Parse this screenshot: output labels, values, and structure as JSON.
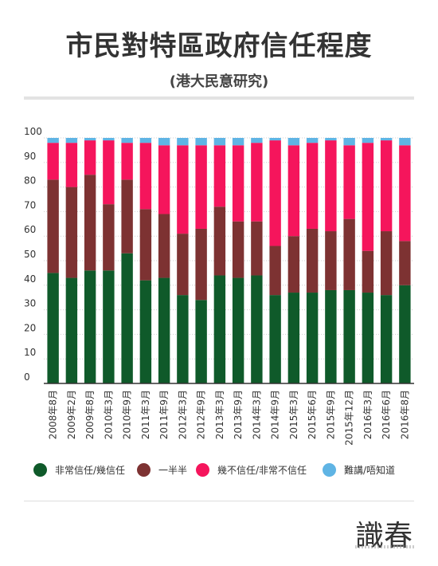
{
  "title": "市民對特區政府信任程度",
  "subtitle": "(港大民意研究)",
  "colors": {
    "trust": "#0f5a2a",
    "half": "#7d3232",
    "distrust": "#f5155c",
    "unsure": "#5fb4e4",
    "axis": "#333333",
    "grid": "#cfcfcf"
  },
  "legend": [
    {
      "label": "非常信任/幾信任",
      "color": "#0f5a2a"
    },
    {
      "label": "一半半",
      "color": "#7d3232"
    },
    {
      "label": "幾不信任/非常不信任",
      "color": "#f5155c"
    },
    {
      "label": "難講/唔知道",
      "color": "#5fb4e4"
    }
  ],
  "logo": "識春",
  "chart_data": {
    "type": "bar",
    "stacked": true,
    "categories": [
      "2008年8月",
      "2009年2月",
      "2009年8月",
      "2010年3月",
      "2010年9月",
      "2011年3月",
      "2011年9月",
      "2012年3月",
      "2012年9月",
      "2013年3月",
      "2013年9月",
      "2014年3月",
      "2014年9月",
      "2015年3月",
      "2015年6月",
      "2015年9月",
      "2015年12月",
      "2016年3月",
      "2016年6月",
      "2016年8月"
    ],
    "series": [
      {
        "name": "非常信任/幾信任",
        "values": [
          45,
          43,
          46,
          46,
          53,
          42,
          43,
          36,
          34,
          44,
          43,
          44,
          36,
          37,
          37,
          38,
          38,
          37,
          36,
          40
        ]
      },
      {
        "name": "一半半",
        "values": [
          38,
          37,
          39,
          27,
          30,
          29,
          26,
          25,
          29,
          28,
          23,
          22,
          20,
          23,
          26,
          24,
          29,
          17,
          26,
          18
        ]
      },
      {
        "name": "幾不信任/非常不信任",
        "values": [
          15,
          18,
          14,
          26,
          15,
          27,
          28,
          36,
          34,
          25,
          31,
          32,
          43,
          37,
          35,
          37,
          30,
          44,
          37,
          39
        ]
      },
      {
        "name": "難講/唔知道",
        "values": [
          2,
          2,
          1,
          1,
          2,
          2,
          3,
          3,
          3,
          3,
          3,
          2,
          1,
          3,
          2,
          1,
          3,
          2,
          1,
          3
        ]
      }
    ],
    "ylim": [
      0,
      100
    ],
    "yticks": [
      0,
      10,
      20,
      30,
      40,
      50,
      60,
      70,
      80,
      90,
      100
    ],
    "grid": true,
    "legend_position": "bottom"
  }
}
